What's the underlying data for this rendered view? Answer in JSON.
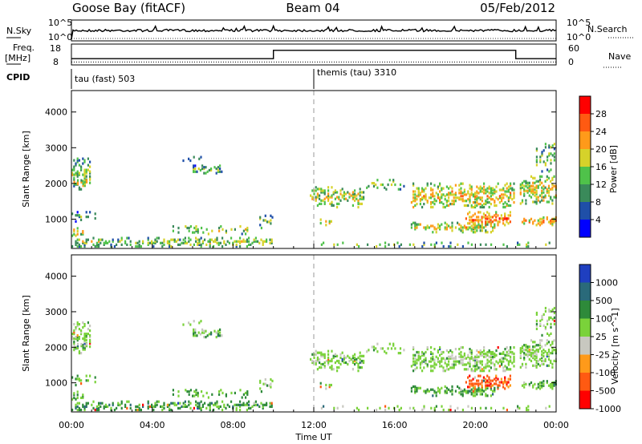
{
  "header": {
    "station": "Goose Bay (fitACF)",
    "beam": "Beam 04",
    "date": "05/Feb/2012"
  },
  "top_panels": {
    "nsky_label": "N.Sky",
    "nsky_ticks": [
      "10^5",
      "10^0"
    ],
    "nsearch_label": "N.Search",
    "nsearch_ticks": [
      "10^5",
      "10^0"
    ],
    "freq_label_1": "Freq.",
    "freq_label_2": "[MHz]",
    "freq_ticks": [
      "18",
      "8"
    ],
    "nave_label": "Nave",
    "nave_ticks": [
      "60",
      "0"
    ],
    "cpid_label": "CPID",
    "cpid_segments": [
      {
        "name": "tau (fast) 503",
        "start_hour": 0
      },
      {
        "name": "themis (tau) 3310",
        "start_hour": 12
      }
    ]
  },
  "chart_data": [
    {
      "type": "line",
      "title": "",
      "xlabel": "Time UT",
      "x_range_hours": [
        0,
        24
      ],
      "series": [
        {
          "role": "frequency",
          "x": [
            0,
            10,
            10,
            22,
            22,
            24
          ],
          "y": [
            11,
            11,
            15,
            15,
            11,
            11
          ]
        },
        {
          "role": "nave",
          "x": [
            0,
            24
          ],
          "y": [
            6,
            6
          ]
        }
      ]
    },
    {
      "type": "heatmap",
      "ylabel": "Slant Range [km]",
      "xlabel": "Time UT",
      "yticks": [
        1000,
        2000,
        3000,
        4000
      ],
      "ylim": [
        180,
        4600
      ],
      "colorbar_label": "Power [dB]",
      "colorbar_ticks": [
        "4",
        "8",
        "12",
        "16",
        "20",
        "24",
        "28"
      ],
      "colors": [
        "#0000ff",
        "#1f4fa8",
        "#3a8a5a",
        "#4fc24a",
        "#d6d22a",
        "#ff9a1a",
        "#ff5a12",
        "#ff0000"
      ]
    },
    {
      "type": "heatmap",
      "ylabel": "Slant Range [km]",
      "xlabel": "Time UT",
      "yticks": [
        1000,
        2000,
        3000,
        4000
      ],
      "ylim": [
        180,
        4600
      ],
      "colorbar_label": "Velocity [m s^-1]",
      "colorbar_ticks": [
        "1000",
        "500",
        "100",
        "25",
        "-25",
        "-100",
        "-500",
        "-1000"
      ],
      "colors": [
        "#1f3fc0",
        "#2a6a7a",
        "#2e8a3a",
        "#7ad23a",
        "#c8c8c0",
        "#ff9a1a",
        "#ff5a12",
        "#ff0000"
      ]
    }
  ],
  "time_axis": {
    "ticks": [
      "00:00",
      "04:00",
      "08:00",
      "12:00",
      "16:00",
      "20:00",
      "00:00"
    ],
    "label": "Time UT"
  },
  "echo_regions": [
    {
      "t0": 0.0,
      "t1": 10.0,
      "r0": 200,
      "r1": 480,
      "density": 0.45,
      "power": 0.35,
      "vel": 0.3
    },
    {
      "t0": 5.0,
      "t1": 9.5,
      "r0": 550,
      "r1": 800,
      "density": 0.2,
      "power": 0.4,
      "vel": 0.35
    },
    {
      "t0": 0.0,
      "t1": 0.6,
      "r0": 500,
      "r1": 750,
      "density": 0.6,
      "power": 0.45,
      "vel": 0.4
    },
    {
      "t0": 0.0,
      "t1": 1.0,
      "r0": 1800,
      "r1": 2700,
      "density": 0.45,
      "power": 0.3,
      "vel": 0.45
    },
    {
      "t0": 0.1,
      "t1": 0.8,
      "r0": 1900,
      "r1": 2100,
      "density": 0.7,
      "power": 0.55,
      "vel": 0.45
    },
    {
      "t0": 0.0,
      "t1": 1.2,
      "r0": 900,
      "r1": 1200,
      "density": 0.25,
      "power": 0.2,
      "vel": 0.4
    },
    {
      "t0": 6.0,
      "t1": 7.5,
      "r0": 2250,
      "r1": 2500,
      "density": 0.5,
      "power": 0.25,
      "vel": 0.45
    },
    {
      "t0": 5.5,
      "t1": 6.5,
      "r0": 2550,
      "r1": 2750,
      "density": 0.25,
      "power": 0.2,
      "vel": 0.45
    },
    {
      "t0": 9.3,
      "t1": 10.0,
      "r0": 800,
      "r1": 1100,
      "density": 0.3,
      "power": 0.3,
      "vel": 0.45
    },
    {
      "t0": 11.8,
      "t1": 14.5,
      "r0": 1300,
      "r1": 1900,
      "density": 0.45,
      "power": 0.4,
      "vel": 0.45
    },
    {
      "t0": 12.3,
      "t1": 13.0,
      "r0": 800,
      "r1": 1000,
      "density": 0.5,
      "power": 0.45,
      "vel": 0.45
    },
    {
      "t0": 14.5,
      "t1": 16.5,
      "r0": 1800,
      "r1": 2100,
      "density": 0.2,
      "power": 0.3,
      "vel": 0.45
    },
    {
      "t0": 16.8,
      "t1": 22.0,
      "r0": 1300,
      "r1": 2000,
      "density": 0.5,
      "power": 0.5,
      "vel": 0.45
    },
    {
      "t0": 16.8,
      "t1": 21.0,
      "r0": 600,
      "r1": 900,
      "density": 0.45,
      "power": 0.45,
      "vel": 0.35
    },
    {
      "t0": 19.5,
      "t1": 21.8,
      "r0": 800,
      "r1": 1200,
      "density": 0.45,
      "power": 0.65,
      "vel": 0.85
    },
    {
      "t0": 22.2,
      "t1": 24.0,
      "r0": 800,
      "r1": 1050,
      "density": 0.5,
      "power": 0.55,
      "vel": 0.4
    },
    {
      "t0": 22.2,
      "t1": 24.0,
      "r0": 1400,
      "r1": 2200,
      "density": 0.55,
      "power": 0.45,
      "vel": 0.45
    },
    {
      "t0": 23.0,
      "t1": 24.0,
      "r0": 2300,
      "r1": 3200,
      "density": 0.3,
      "power": 0.3,
      "vel": 0.45
    },
    {
      "t0": 12.0,
      "t1": 24.0,
      "r0": 200,
      "r1": 350,
      "density": 0.18,
      "power": 0.3,
      "vel": 0.45
    }
  ]
}
